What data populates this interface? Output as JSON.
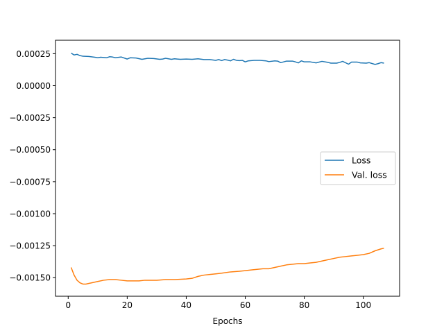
{
  "chart_data": {
    "type": "line",
    "title": "",
    "xlabel": "Epochs",
    "ylabel": "",
    "xlim": [
      -4.3,
      112.3
    ],
    "ylim": [
      -0.001645,
      0.000355
    ],
    "xticks": [
      0,
      20,
      40,
      60,
      80,
      100
    ],
    "yticks": [
      0.00025,
      0.0,
      -0.00025,
      -0.0005,
      -0.00075,
      -0.001,
      -0.00125,
      -0.0015
    ],
    "ytick_labels": [
      "0.00025",
      "0.00000",
      "−0.00025",
      "−0.00050",
      "−0.00075",
      "−0.00100",
      "−0.00125",
      "−0.00150"
    ],
    "xtick_labels": [
      "0",
      "20",
      "40",
      "60",
      "80",
      "100"
    ],
    "grid": false,
    "legend_position": "center-right",
    "series": [
      {
        "name": "Loss",
        "color": "#1f77b4",
        "points": [
          [
            1,
            0.000255
          ],
          [
            2,
            0.00024
          ],
          [
            3,
            0.000245
          ],
          [
            4,
            0.000235
          ],
          [
            5,
            0.00023
          ],
          [
            7,
            0.000228
          ],
          [
            9,
            0.000222
          ],
          [
            10,
            0.000218
          ],
          [
            11,
            0.000222
          ],
          [
            13,
            0.000218
          ],
          [
            14,
            0.000226
          ],
          [
            15,
            0.000224
          ],
          [
            16,
            0.000218
          ],
          [
            18,
            0.000224
          ],
          [
            20,
            0.000208
          ],
          [
            21,
            0.000218
          ],
          [
            23,
            0.000216
          ],
          [
            25,
            0.000206
          ],
          [
            27,
            0.000214
          ],
          [
            29,
            0.000212
          ],
          [
            31,
            0.000206
          ],
          [
            32,
            0.000208
          ],
          [
            33,
            0.000214
          ],
          [
            35,
            0.000206
          ],
          [
            36,
            0.00021
          ],
          [
            38,
            0.000206
          ],
          [
            40,
            0.000208
          ],
          [
            42,
            0.000206
          ],
          [
            44,
            0.00021
          ],
          [
            46,
            0.000204
          ],
          [
            48,
            0.000204
          ],
          [
            50,
            0.000198
          ],
          [
            51,
            0.000204
          ],
          [
            52,
            0.000196
          ],
          [
            53,
            0.000204
          ],
          [
            54,
            0.0002
          ],
          [
            55,
            0.000194
          ],
          [
            56,
            0.000206
          ],
          [
            57,
            0.000198
          ],
          [
            58,
            0.000196
          ],
          [
            59,
            0.000198
          ],
          [
            60,
            0.000186
          ],
          [
            61,
            0.000194
          ],
          [
            63,
            0.000198
          ],
          [
            65,
            0.000198
          ],
          [
            67,
            0.000194
          ],
          [
            68,
            0.000188
          ],
          [
            70,
            0.000194
          ],
          [
            71,
            0.000192
          ],
          [
            72,
            0.00018
          ],
          [
            73,
            0.000186
          ],
          [
            74,
            0.000192
          ],
          [
            76,
            0.000192
          ],
          [
            77,
            0.000186
          ],
          [
            78,
            0.000178
          ],
          [
            79,
            0.000194
          ],
          [
            80,
            0.000186
          ],
          [
            82,
            0.000186
          ],
          [
            84,
            0.000178
          ],
          [
            86,
            0.00019
          ],
          [
            88,
            0.000182
          ],
          [
            89,
            0.000176
          ],
          [
            91,
            0.000176
          ],
          [
            92,
            0.000182
          ],
          [
            93,
            0.00019
          ],
          [
            95,
            0.000168
          ],
          [
            96,
            0.000184
          ],
          [
            98,
            0.000184
          ],
          [
            99,
            0.000178
          ],
          [
            101,
            0.000176
          ],
          [
            102,
            0.00018
          ],
          [
            104,
            0.000166
          ],
          [
            105,
            0.000172
          ],
          [
            106,
            0.00018
          ],
          [
            107,
            0.000176
          ]
        ]
      },
      {
        "name": "Val. loss",
        "color": "#ff7f0e",
        "points": [
          [
            1,
            -0.00142
          ],
          [
            2,
            -0.00148
          ],
          [
            3,
            -0.00152
          ],
          [
            4,
            -0.00154
          ],
          [
            5,
            -0.00155
          ],
          [
            6,
            -0.00155
          ],
          [
            8,
            -0.00154
          ],
          [
            10,
            -0.00153
          ],
          [
            12,
            -0.00152
          ],
          [
            14,
            -0.001515
          ],
          [
            16,
            -0.001515
          ],
          [
            18,
            -0.00152
          ],
          [
            20,
            -0.001525
          ],
          [
            22,
            -0.001525
          ],
          [
            24,
            -0.001525
          ],
          [
            26,
            -0.00152
          ],
          [
            28,
            -0.00152
          ],
          [
            30,
            -0.00152
          ],
          [
            33,
            -0.001515
          ],
          [
            36,
            -0.001515
          ],
          [
            40,
            -0.00151
          ],
          [
            42,
            -0.001505
          ],
          [
            44,
            -0.00149
          ],
          [
            46,
            -0.00148
          ],
          [
            48,
            -0.001475
          ],
          [
            50,
            -0.00147
          ],
          [
            52,
            -0.001465
          ],
          [
            55,
            -0.001455
          ],
          [
            58,
            -0.00145
          ],
          [
            60,
            -0.001445
          ],
          [
            62,
            -0.00144
          ],
          [
            64,
            -0.001435
          ],
          [
            66,
            -0.00143
          ],
          [
            68,
            -0.00143
          ],
          [
            70,
            -0.00142
          ],
          [
            72,
            -0.00141
          ],
          [
            74,
            -0.0014
          ],
          [
            76,
            -0.001395
          ],
          [
            78,
            -0.00139
          ],
          [
            80,
            -0.00139
          ],
          [
            82,
            -0.001385
          ],
          [
            84,
            -0.00138
          ],
          [
            86,
            -0.00137
          ],
          [
            88,
            -0.00136
          ],
          [
            90,
            -0.00135
          ],
          [
            92,
            -0.00134
          ],
          [
            94,
            -0.001335
          ],
          [
            96,
            -0.00133
          ],
          [
            98,
            -0.001325
          ],
          [
            100,
            -0.00132
          ],
          [
            102,
            -0.00131
          ],
          [
            104,
            -0.00129
          ],
          [
            106,
            -0.001275
          ],
          [
            107,
            -0.00127
          ]
        ]
      }
    ]
  }
}
